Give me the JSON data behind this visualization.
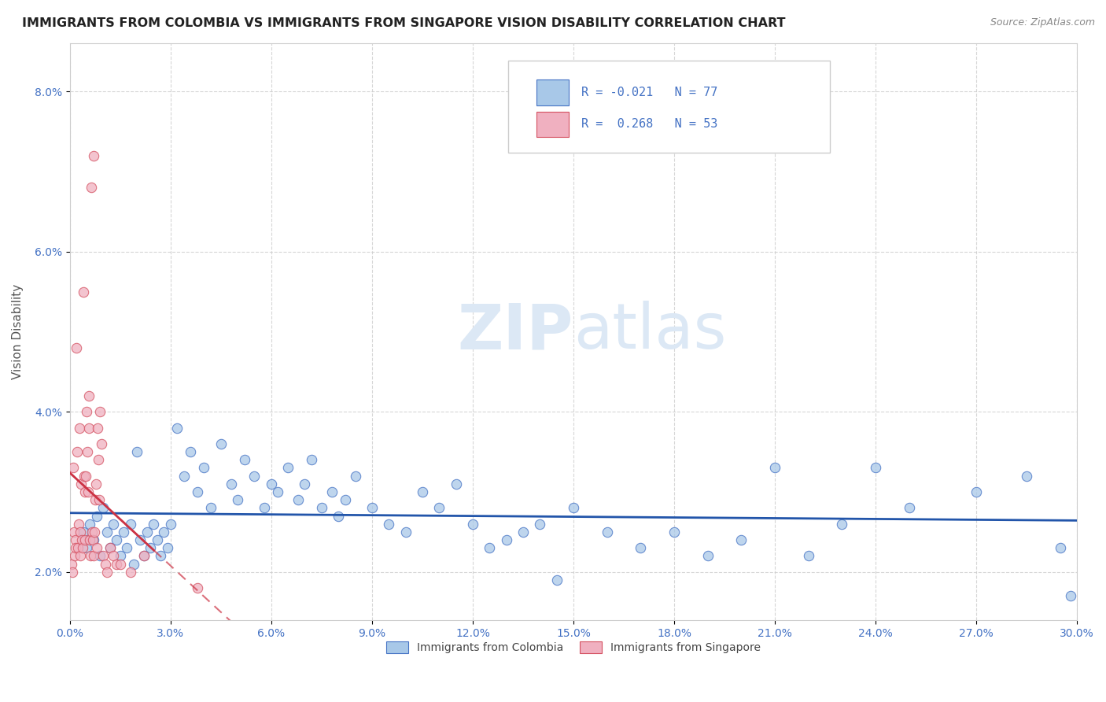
{
  "title": "IMMIGRANTS FROM COLOMBIA VS IMMIGRANTS FROM SINGAPORE VISION DISABILITY CORRELATION CHART",
  "source": "Source: ZipAtlas.com",
  "ylabel": "Vision Disability",
  "legend_entry1_r": "-0.021",
  "legend_entry1_n": "77",
  "legend_entry2_r": "0.268",
  "legend_entry2_n": "53",
  "xlim": [
    0.0,
    30.0
  ],
  "ylim": [
    1.4,
    8.6
  ],
  "yticks": [
    2.0,
    4.0,
    6.0,
    8.0
  ],
  "xticks": [
    0,
    3,
    6,
    9,
    12,
    15,
    18,
    21,
    24,
    27,
    30
  ],
  "color_colombia": "#a8c8e8",
  "color_singapore": "#f0b0c0",
  "color_colombia_edge": "#4472c4",
  "color_singapore_edge": "#d45060",
  "color_trend_colombia": "#2255aa",
  "color_trend_singapore": "#cc3344",
  "color_grid": "#cccccc",
  "watermark_color": "#dce8f5",
  "colombia_x": [
    0.4,
    0.5,
    0.6,
    0.7,
    0.8,
    0.9,
    1.0,
    1.1,
    1.2,
    1.3,
    1.4,
    1.5,
    1.6,
    1.7,
    1.8,
    1.9,
    2.0,
    2.1,
    2.2,
    2.3,
    2.4,
    2.5,
    2.6,
    2.7,
    2.8,
    2.9,
    3.0,
    3.2,
    3.4,
    3.6,
    3.8,
    4.0,
    4.2,
    4.5,
    4.8,
    5.0,
    5.2,
    5.5,
    5.8,
    6.0,
    6.2,
    6.5,
    6.8,
    7.0,
    7.2,
    7.5,
    7.8,
    8.0,
    8.2,
    8.5,
    9.0,
    9.5,
    10.0,
    10.5,
    11.0,
    11.5,
    12.0,
    12.5,
    13.0,
    13.5,
    14.0,
    14.5,
    15.0,
    16.0,
    17.0,
    18.0,
    19.0,
    20.0,
    21.0,
    22.0,
    23.0,
    24.0,
    25.0,
    27.0,
    28.5,
    29.5,
    29.8
  ],
  "colombia_y": [
    2.5,
    2.3,
    2.6,
    2.4,
    2.7,
    2.2,
    2.8,
    2.5,
    2.3,
    2.6,
    2.4,
    2.2,
    2.5,
    2.3,
    2.6,
    2.1,
    3.5,
    2.4,
    2.2,
    2.5,
    2.3,
    2.6,
    2.4,
    2.2,
    2.5,
    2.3,
    2.6,
    3.8,
    3.2,
    3.5,
    3.0,
    3.3,
    2.8,
    3.6,
    3.1,
    2.9,
    3.4,
    3.2,
    2.8,
    3.1,
    3.0,
    3.3,
    2.9,
    3.1,
    3.4,
    2.8,
    3.0,
    2.7,
    2.9,
    3.2,
    2.8,
    2.6,
    2.5,
    3.0,
    2.8,
    3.1,
    2.6,
    2.3,
    2.4,
    2.5,
    2.6,
    1.9,
    2.8,
    2.5,
    2.3,
    2.5,
    2.2,
    2.4,
    3.3,
    2.2,
    2.6,
    3.3,
    2.8,
    3.0,
    3.2,
    2.3,
    1.7
  ],
  "singapore_x": [
    0.05,
    0.08,
    0.1,
    0.12,
    0.14,
    0.16,
    0.18,
    0.2,
    0.22,
    0.24,
    0.26,
    0.28,
    0.3,
    0.32,
    0.34,
    0.36,
    0.38,
    0.4,
    0.42,
    0.44,
    0.46,
    0.48,
    0.5,
    0.52,
    0.54,
    0.56,
    0.58,
    0.6,
    0.62,
    0.64,
    0.66,
    0.68,
    0.7,
    0.72,
    0.74,
    0.76,
    0.78,
    0.8,
    0.82,
    0.85,
    0.88,
    0.9,
    0.95,
    1.0,
    1.05,
    1.1,
    1.2,
    1.3,
    1.4,
    1.5,
    1.8,
    2.2,
    3.8
  ],
  "singapore_y": [
    2.1,
    2.0,
    3.3,
    2.5,
    2.2,
    2.4,
    2.3,
    4.8,
    3.5,
    2.3,
    2.6,
    3.8,
    2.2,
    2.5,
    3.1,
    2.4,
    2.3,
    5.5,
    3.2,
    2.4,
    3.0,
    3.2,
    4.0,
    3.5,
    3.0,
    4.2,
    3.8,
    2.4,
    2.2,
    6.8,
    2.5,
    2.4,
    7.2,
    2.2,
    2.5,
    2.9,
    3.1,
    2.3,
    3.8,
    3.4,
    2.9,
    4.0,
    3.6,
    2.2,
    2.1,
    2.0,
    2.3,
    2.2,
    2.1,
    2.1,
    2.0,
    2.2,
    1.8
  ]
}
